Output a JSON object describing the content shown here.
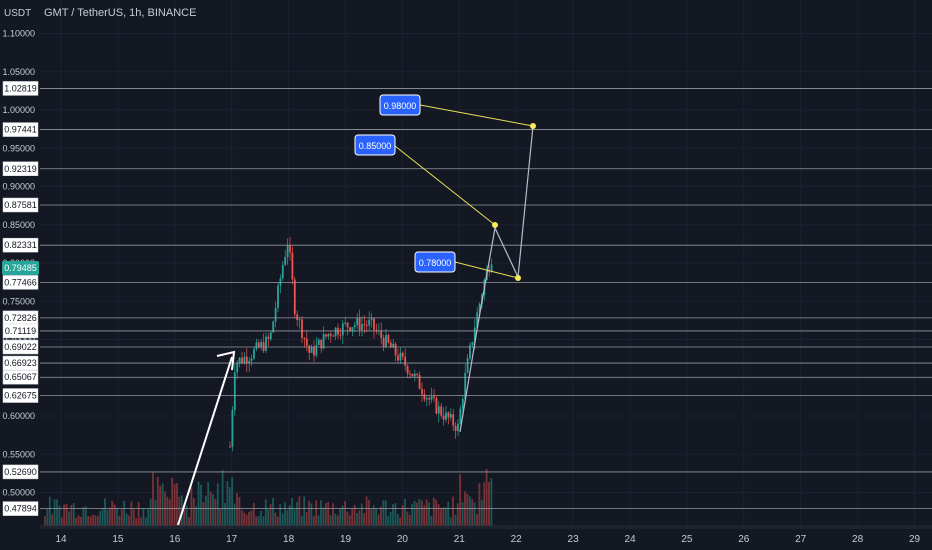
{
  "header": {
    "currency": "USDT",
    "symbol_info": "GMT / TetherUS, 1h, BINANCE"
  },
  "price_axis": {
    "ticks": [
      "1.10000",
      "1.05000",
      "1.00000",
      "0.95000",
      "0.90000",
      "0.85000",
      "0.80000",
      "0.75000",
      "0.70000",
      "0.65000",
      "0.60000",
      "0.55000",
      "0.50000"
    ],
    "ylim": [
      0.45,
      1.12
    ]
  },
  "time_axis": {
    "labels": [
      "14",
      "15",
      "16",
      "17",
      "18",
      "19",
      "20",
      "21",
      "22",
      "23",
      "24",
      "25",
      "26",
      "27",
      "28",
      "29"
    ]
  },
  "horizontal_levels": [
    "1.02819",
    "0.97441",
    "0.92319",
    "0.87581",
    "0.82331",
    "0.77466",
    "0.72826",
    "0.71119",
    "0.69022",
    "0.66923",
    "0.65067",
    "0.62675",
    "0.52690",
    "0.47894"
  ],
  "last_price": {
    "label": "0.79485",
    "value": 0.79485,
    "color": "#26a69a"
  },
  "targets": [
    {
      "label": "0.98000"
    },
    {
      "label": "0.85000"
    },
    {
      "label": "0.78000"
    }
  ],
  "colors": {
    "background": "#141823",
    "up": "#26a69a",
    "down": "#ef5350",
    "label_blue": "#2962ff",
    "target_line": "#e8e05a",
    "grid": "#1e2230"
  }
}
